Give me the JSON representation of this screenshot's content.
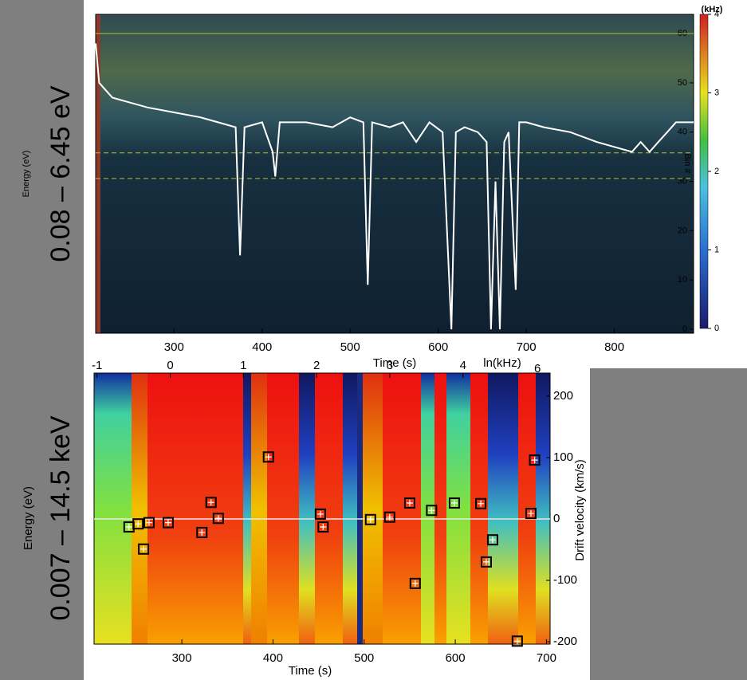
{
  "chart_data": [
    {
      "type": "line",
      "range_label": "0.08 – 6.45 eV",
      "ylabel": "Energy (eV)",
      "xlabel": "Time (s)",
      "y2label": "Bin #",
      "xlim": [
        211,
        890
      ],
      "xticks": [
        300,
        400,
        500,
        600,
        700,
        800
      ],
      "ylim": [
        -0.8,
        63.9
      ],
      "yticks": [
        0,
        10,
        20,
        30,
        40,
        50,
        60
      ],
      "reference_lines": [
        60,
        35.8,
        30.6
      ],
      "colorbar": {
        "label": "(kHz)",
        "lim": [
          0,
          4
        ],
        "ticks": [
          0,
          1,
          2,
          3,
          4
        ]
      },
      "series": [
        {
          "color": "#ffffff",
          "x": [
            211,
            215,
            230,
            250,
            270,
            300,
            330,
            350,
            370,
            375,
            380,
            400,
            412,
            415,
            420,
            450,
            480,
            500,
            515,
            520,
            525,
            545,
            560,
            575,
            590,
            605,
            615,
            620,
            630,
            645,
            655,
            660,
            665,
            670,
            675,
            680,
            688,
            692,
            700,
            720,
            750,
            780,
            800,
            820,
            830,
            840,
            850,
            860,
            870,
            890
          ],
          "values": [
            58,
            50,
            47,
            46,
            45,
            44,
            43,
            42,
            41,
            15,
            41,
            42,
            36,
            31,
            42,
            42,
            41,
            43,
            42,
            9,
            42,
            41,
            42,
            38,
            42,
            40,
            0,
            40,
            41,
            40,
            38,
            0,
            30,
            0,
            38,
            40,
            8,
            42,
            42,
            41,
            40,
            38,
            37,
            36,
            38,
            36,
            38,
            40,
            42,
            42
          ]
        }
      ]
    },
    {
      "type": "scatter",
      "range_label": "0.007 – 14.5 keV",
      "ylabel": "Energy (eV)",
      "xlabel": "Time (s)",
      "y2label": "Drift velocity (km/s)",
      "xlim": [
        203.7,
        704
      ],
      "xticks": [
        300,
        400,
        500,
        600,
        700
      ],
      "ylim": [
        -203.9,
        237.7
      ],
      "yticks": [
        -200,
        -100,
        0,
        100,
        200
      ],
      "x2label": "ln(kHz)",
      "x2lim": [
        -1.04,
        5.19
      ],
      "x2ticks": [
        -1,
        0,
        1,
        2,
        3,
        4
      ],
      "x2note": "6",
      "zero_line": 0,
      "series": [
        {
          "color": "#000000",
          "x": [
            242,
            252,
            264,
            285,
            258,
            322,
            332,
            340,
            395,
            452,
            455,
            507,
            528,
            550,
            556,
            574,
            599,
            628,
            641,
            634,
            683,
            687,
            668
          ],
          "values": [
            -13,
            -8,
            -6,
            -6,
            -49,
            -22,
            27,
            1,
            101,
            8,
            -13,
            -1,
            3,
            26,
            -105,
            14,
            26,
            25,
            -34,
            -70,
            9,
            96,
            -199
          ]
        }
      ]
    }
  ]
}
